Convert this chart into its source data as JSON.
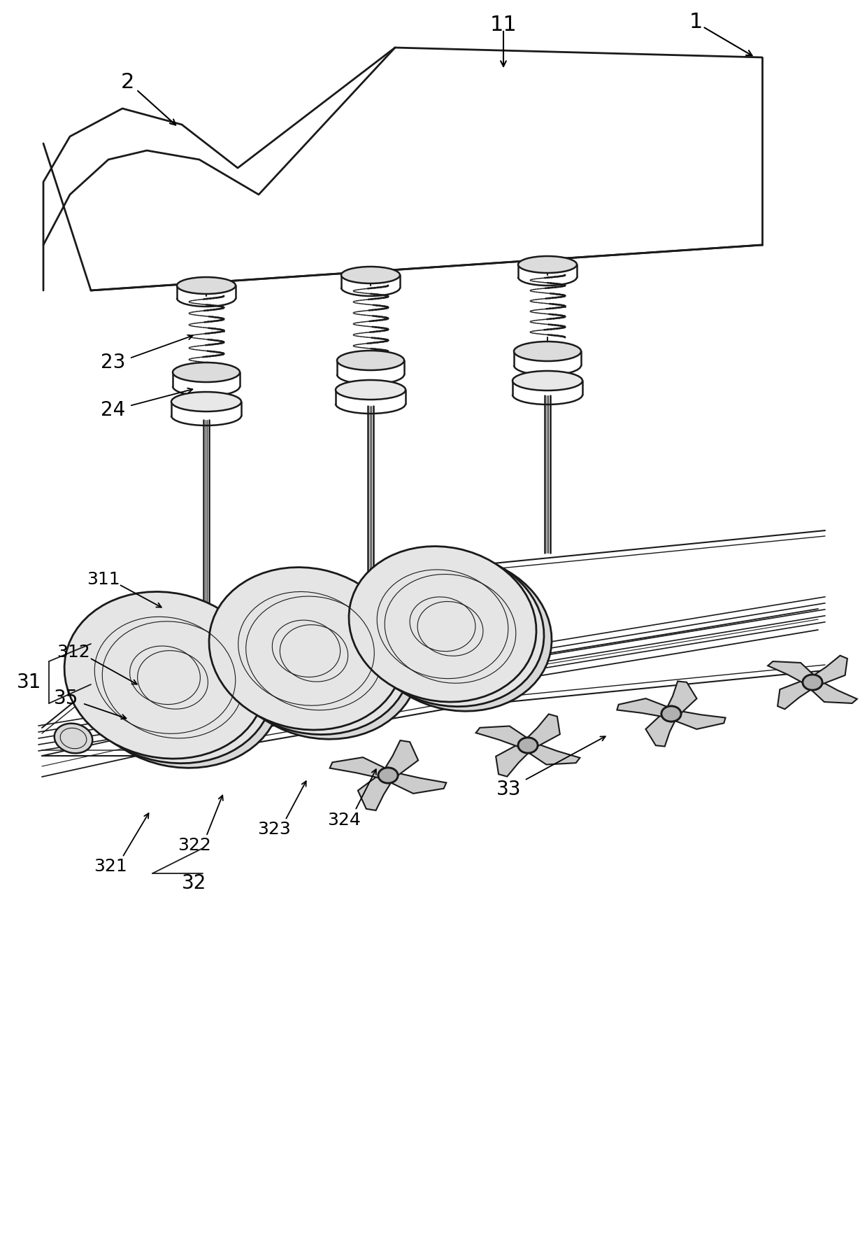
{
  "bg_color": "#ffffff",
  "line_color": "#1a1a1a",
  "fig_width": 12.4,
  "fig_height": 17.79,
  "font_size": 22,
  "font_size_sm": 20
}
